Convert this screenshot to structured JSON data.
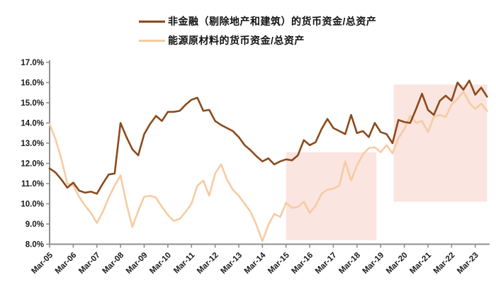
{
  "legend": {
    "items": [
      {
        "label": "非金融（剔除地产和建筑）的货币资金/总资产",
        "color": "#8B4A1D"
      },
      {
        "label": "能源原材料的货币资金/总资产",
        "color": "#F7CBA2"
      }
    ]
  },
  "chart_data": {
    "type": "line",
    "title": "",
    "xlabel": "",
    "ylabel": "",
    "grid": false,
    "legend_position": "top",
    "frequency": "quarterly",
    "first_point": "Mar-05",
    "last_point": "Sep-23",
    "points_per_tick": 4,
    "x_tick_labels": [
      "Mar-05",
      "Mar-06",
      "Mar-07",
      "Mar-08",
      "Mar-09",
      "Mar-10",
      "Mar-11",
      "Mar-12",
      "Mar-13",
      "Mar-14",
      "Mar-15",
      "Mar-16",
      "Mar-17",
      "Mar-18",
      "Mar-19",
      "Mar-20",
      "Mar-21",
      "Mar-22",
      "Mar-23"
    ],
    "ylim": [
      8.0,
      17.0
    ],
    "y_tick_step": 1.0,
    "y_tick_labels": [
      "17.0%",
      "16.0%",
      "15.0%",
      "14.0%",
      "13.0%",
      "12.0%",
      "11.0%",
      "10.0%",
      "9.0%",
      "8.0%"
    ],
    "series": [
      {
        "name": "非金融（剔除地产和建筑）的货币资金/总资产",
        "color": "#8B4A1D",
        "width": 2.6,
        "values": [
          11.75,
          11.55,
          11.2,
          10.8,
          11.05,
          10.65,
          10.55,
          10.6,
          10.5,
          11.0,
          11.45,
          11.5,
          14.0,
          13.3,
          12.7,
          12.4,
          13.45,
          13.95,
          14.35,
          14.1,
          14.55,
          14.55,
          14.6,
          14.9,
          15.15,
          15.25,
          14.6,
          14.65,
          14.1,
          13.9,
          13.75,
          13.6,
          13.3,
          12.9,
          12.65,
          12.35,
          12.1,
          12.25,
          11.95,
          12.1,
          12.2,
          12.15,
          12.4,
          13.15,
          12.9,
          13.05,
          13.7,
          14.2,
          13.75,
          13.6,
          13.45,
          14.4,
          13.5,
          13.6,
          13.3,
          14.0,
          13.55,
          13.45,
          13.0,
          14.15,
          14.05,
          14.0,
          14.7,
          15.45,
          14.65,
          14.4,
          15.1,
          15.35,
          15.1,
          16.0,
          15.65,
          16.1,
          15.4,
          15.75,
          15.3
        ]
      },
      {
        "name": "能源原材料的货币资金/总资产",
        "color": "#F7CBA2",
        "width": 2.6,
        "values": [
          13.95,
          13.2,
          12.2,
          11.0,
          10.9,
          10.35,
          9.9,
          9.55,
          9.05,
          9.6,
          10.3,
          10.9,
          11.4,
          10.0,
          8.85,
          9.65,
          10.35,
          10.4,
          10.3,
          9.85,
          9.45,
          9.15,
          9.25,
          9.6,
          10.0,
          10.9,
          11.15,
          10.4,
          11.5,
          11.95,
          11.2,
          10.7,
          10.4,
          10.0,
          9.6,
          8.95,
          8.15,
          8.95,
          9.5,
          9.35,
          10.05,
          9.8,
          9.85,
          10.1,
          9.55,
          9.9,
          10.5,
          10.7,
          10.75,
          10.9,
          12.1,
          11.15,
          11.9,
          12.45,
          12.75,
          12.8,
          12.55,
          12.9,
          12.5,
          13.25,
          13.7,
          14.35,
          14.0,
          14.1,
          13.55,
          14.3,
          14.4,
          14.3,
          14.9,
          15.2,
          15.55,
          15.0,
          14.7,
          14.95,
          14.6
        ]
      }
    ],
    "highlight_boxes": [
      {
        "x_start_index": 40.0,
        "x_end_index": 55.3,
        "y_min": 8.2,
        "y_max": 12.55,
        "color": "#FAE5E0"
      },
      {
        "x_start_index": 58.2,
        "x_end_index": 74.0,
        "y_min": 10.1,
        "y_max": 15.9,
        "color": "#FAE5E0"
      }
    ],
    "colors": {
      "axis": "#8F8F8F",
      "tick_label": "#1a1a1a",
      "background": "#ffffff"
    }
  }
}
